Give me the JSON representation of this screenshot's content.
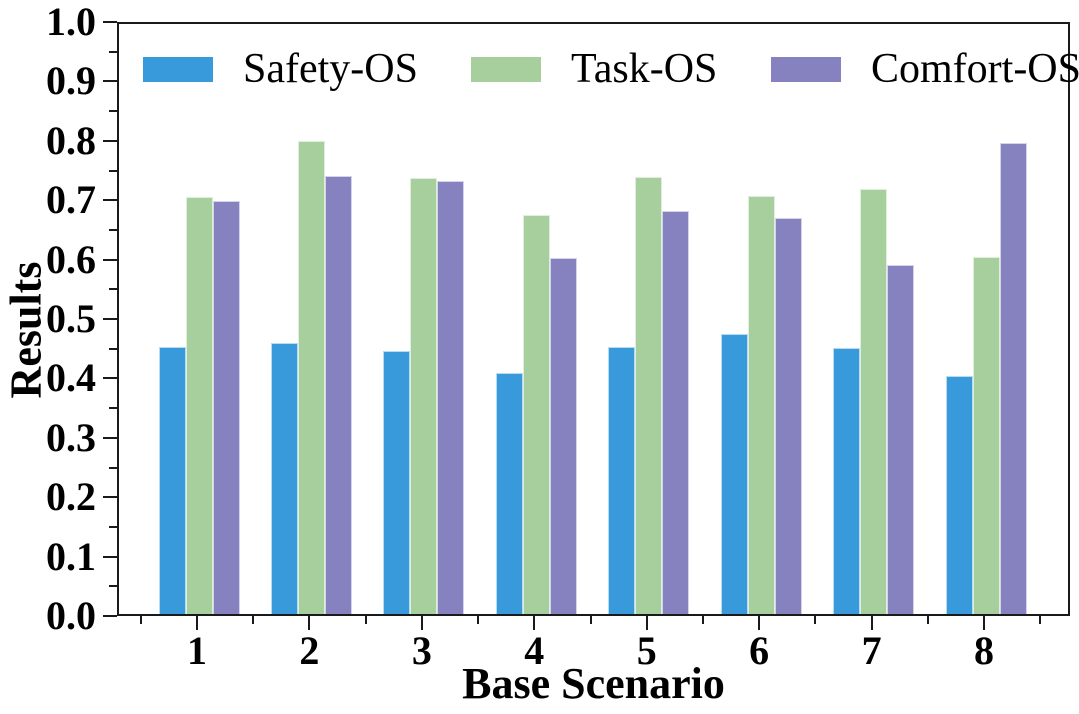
{
  "chart_data": {
    "type": "bar",
    "title": "",
    "xlabel": "Base Scenario",
    "ylabel": "Results",
    "categories": [
      "1",
      "2",
      "3",
      "4",
      "5",
      "6",
      "7",
      "8"
    ],
    "series": [
      {
        "name": "Safety-OS",
        "color": "#3899db",
        "values": [
          0.45,
          0.457,
          0.443,
          0.405,
          0.45,
          0.471,
          0.448,
          0.4
        ]
      },
      {
        "name": "Task-OS",
        "color": "#a6cf9d",
        "values": [
          0.702,
          0.796,
          0.734,
          0.672,
          0.735,
          0.703,
          0.716,
          0.601
        ]
      },
      {
        "name": "Comfort-OS",
        "color": "#8682bf",
        "values": [
          0.695,
          0.737,
          0.729,
          0.599,
          0.678,
          0.666,
          0.587,
          0.793
        ]
      }
    ],
    "ylim": [
      0.0,
      1.0
    ],
    "ytick_step": 0.1,
    "ytick_labels": [
      "0.0",
      "0.1",
      "0.2",
      "0.3",
      "0.4",
      "0.5",
      "0.6",
      "0.7",
      "0.8",
      "0.9",
      "1.0"
    ],
    "yminor_step": 0.05,
    "grid": false,
    "legend_position": "top-inside",
    "axis_color": "#1a1a1a",
    "background_color": "#ffffff"
  }
}
